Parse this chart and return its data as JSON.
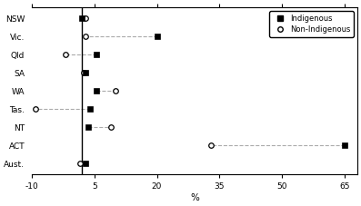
{
  "states": [
    "NSW",
    "Vic.",
    "Qld",
    "SA",
    "WA",
    "Tas.",
    "NT",
    "ACT",
    "Aust."
  ],
  "indigenous": [
    2.0,
    20.0,
    5.5,
    2.8,
    5.5,
    4.0,
    3.5,
    65.0,
    3.0
  ],
  "non_indigenous": [
    3.0,
    3.0,
    -2.0,
    2.5,
    10.0,
    -9.0,
    9.0,
    33.0,
    1.5
  ],
  "xlim": [
    -10,
    68
  ],
  "xticks": [
    -10,
    5,
    20,
    35,
    50,
    65
  ],
  "xtick_labels": [
    "-10",
    "5",
    "20",
    "35",
    "50",
    "65"
  ],
  "xlabel": "%",
  "vline_x": 2.0,
  "dashed_color": "#aaaaaa",
  "background_color": "#ffffff"
}
